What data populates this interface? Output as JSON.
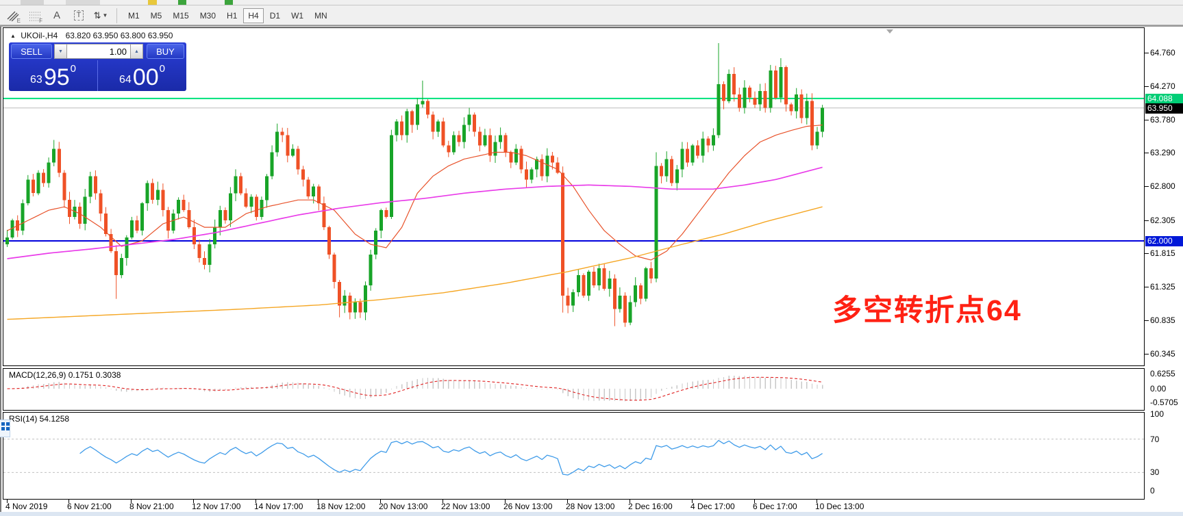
{
  "toolbar": {
    "tools": [
      {
        "name": "equidistant-channel-tool",
        "label": "E"
      },
      {
        "name": "fibonacci-grid-tool",
        "label": "F"
      },
      {
        "name": "text-tool",
        "label": "A"
      },
      {
        "name": "text-label-tool",
        "label": "T"
      },
      {
        "name": "arrow-objects-tool",
        "label": ""
      }
    ],
    "timeframes": [
      {
        "label": "M1",
        "active": false
      },
      {
        "label": "M5",
        "active": false
      },
      {
        "label": "M15",
        "active": false
      },
      {
        "label": "M30",
        "active": false
      },
      {
        "label": "H1",
        "active": false
      },
      {
        "label": "H4",
        "active": true
      },
      {
        "label": "D1",
        "active": false
      },
      {
        "label": "W1",
        "active": false
      },
      {
        "label": "MN",
        "active": false
      }
    ]
  },
  "window": {
    "collapse_icon": "▲",
    "title_symbol": "UKOil-,H4",
    "title_ohlc": "63.820 63.950 63.800 63.950"
  },
  "trade_panel": {
    "sell_label": "SELL",
    "buy_label": "BUY",
    "volume": "1.00",
    "spin_down_icon": "▼",
    "spin_up_icon": "▲",
    "sell_price": {
      "prefix": "63",
      "main": "95",
      "sup": "0"
    },
    "buy_price": {
      "prefix": "64",
      "main": "00",
      "sup": "0"
    }
  },
  "annotation": {
    "text": "多空转折点64",
    "color": "#FF2113"
  },
  "indicators": {
    "macd_label": "MACD(12,26,9) 0.1751 0.3038",
    "rsi_label": "RSI(14) 54.1258"
  },
  "chart_data": {
    "type": "candlestick",
    "symbol": "UKOil-",
    "timeframe": "H4",
    "ohlc_display": {
      "open": "63.820",
      "high": "63.950",
      "low": "63.800",
      "close": "63.950"
    },
    "ylim": [
      60.17,
      65.12
    ],
    "price_ticks": [
      "64.760",
      "64.270",
      "63.780",
      "63.290",
      "62.800",
      "62.305",
      "61.815",
      "61.325",
      "60.835",
      "60.345"
    ],
    "levels": [
      {
        "price": 64.088,
        "label": "64.088",
        "color": "#00E27B",
        "label_bg": "#00CE76",
        "width": 2
      },
      {
        "price": 63.95,
        "label": "63.950",
        "color": "#BBBBBB",
        "label_bg": "#000000",
        "width": 1
      },
      {
        "price": 62.0,
        "label": "62.000",
        "color": "#0000DD",
        "label_bg": "#0018D8",
        "width": 2
      }
    ],
    "candles": {
      "up_color": "#18A428",
      "down_color": "#EF5126",
      "first_open": 61.95,
      "closes": [
        62.05,
        62.3,
        62.15,
        62.55,
        62.9,
        62.7,
        63.0,
        62.85,
        63.15,
        63.35,
        63.0,
        62.6,
        62.35,
        62.5,
        62.25,
        62.65,
        62.95,
        62.7,
        62.4,
        62.1,
        61.85,
        61.5,
        61.75,
        62.05,
        62.3,
        62.15,
        62.55,
        62.85,
        62.6,
        62.75,
        62.45,
        62.15,
        62.4,
        62.6,
        62.45,
        62.2,
        61.95,
        61.75,
        61.65,
        61.95,
        62.2,
        62.45,
        62.3,
        62.7,
        62.95,
        62.7,
        62.5,
        62.65,
        62.35,
        62.6,
        62.95,
        63.3,
        63.6,
        63.55,
        63.25,
        63.35,
        63.05,
        62.9,
        62.65,
        62.8,
        62.55,
        62.2,
        61.8,
        61.4,
        61.05,
        61.2,
        60.95,
        61.1,
        60.95,
        61.35,
        61.8,
        62.15,
        62.45,
        62.35,
        63.55,
        63.75,
        63.55,
        63.9,
        63.7,
        64.0,
        64.05,
        63.85,
        63.6,
        63.75,
        63.4,
        63.3,
        63.55,
        63.45,
        63.7,
        63.85,
        63.6,
        63.4,
        63.55,
        63.25,
        63.45,
        63.55,
        63.3,
        63.15,
        63.35,
        63.05,
        62.9,
        63.05,
        63.2,
        62.95,
        63.25,
        63.15,
        63.0,
        61.2,
        61.05,
        61.25,
        61.5,
        61.2,
        61.55,
        61.35,
        61.6,
        61.3,
        61.45,
        61.0,
        61.2,
        60.8,
        61.1,
        61.35,
        61.15,
        61.6,
        61.45,
        63.1,
        62.95,
        63.2,
        62.85,
        63.05,
        63.35,
        63.15,
        63.4,
        63.25,
        63.5,
        63.4,
        63.55,
        64.3,
        64.05,
        64.45,
        64.15,
        63.95,
        64.25,
        64.1,
        64.0,
        64.2,
        63.95,
        64.5,
        64.1,
        64.55,
        64.0,
        63.9,
        64.15,
        63.8,
        64.05,
        63.4,
        63.6,
        63.95
      ],
      "wick_overrides": {
        "9": {
          "h": 63.48
        },
        "21": {
          "l": 61.15
        },
        "52": {
          "h": 63.72
        },
        "64": {
          "l": 60.88
        },
        "66": {
          "l": 60.85
        },
        "68": {
          "l": 60.87
        },
        "80": {
          "h": 64.35
        },
        "107": {
          "l": 60.95
        },
        "117": {
          "l": 60.75
        },
        "119": {
          "l": 60.74
        },
        "125": {
          "h": 63.3
        },
        "137": {
          "h": 64.9
        },
        "149": {
          "h": 64.68
        },
        "155": {
          "l": 63.33
        }
      }
    },
    "moving_averages": [
      {
        "name": "fast-ma",
        "color": "#E8522A",
        "width": 1.2,
        "points": [
          [
            0,
            62.15
          ],
          [
            4,
            62.3
          ],
          [
            8,
            62.45
          ],
          [
            11,
            62.5
          ],
          [
            14,
            62.4
          ],
          [
            18,
            62.2
          ],
          [
            22,
            61.92
          ],
          [
            26,
            62.0
          ],
          [
            30,
            62.25
          ],
          [
            34,
            62.35
          ],
          [
            38,
            62.2
          ],
          [
            42,
            62.2
          ],
          [
            46,
            62.4
          ],
          [
            50,
            62.5
          ],
          [
            53,
            62.55
          ],
          [
            56,
            62.6
          ],
          [
            59,
            62.6
          ],
          [
            63,
            62.45
          ],
          [
            67,
            62.1
          ],
          [
            70,
            61.95
          ],
          [
            73,
            61.9
          ],
          [
            76,
            62.2
          ],
          [
            79,
            62.7
          ],
          [
            82,
            62.95
          ],
          [
            85,
            63.1
          ],
          [
            88,
            63.2
          ],
          [
            91,
            63.25
          ],
          [
            94,
            63.3
          ],
          [
            97,
            63.3
          ],
          [
            100,
            63.25
          ],
          [
            103,
            63.15
          ],
          [
            106,
            63.05
          ],
          [
            109,
            62.8
          ],
          [
            112,
            62.45
          ],
          [
            115,
            62.15
          ],
          [
            118,
            61.95
          ],
          [
            121,
            61.78
          ],
          [
            124,
            61.72
          ],
          [
            127,
            61.85
          ],
          [
            130,
            62.1
          ],
          [
            133,
            62.4
          ],
          [
            136,
            62.7
          ],
          [
            139,
            63.0
          ],
          [
            142,
            63.25
          ],
          [
            145,
            63.45
          ],
          [
            148,
            63.55
          ],
          [
            151,
            63.62
          ],
          [
            154,
            63.68
          ],
          [
            157,
            63.7
          ]
        ]
      },
      {
        "name": "medium-ma",
        "color": "#E93CE9",
        "width": 1.7,
        "points": [
          [
            0,
            61.74
          ],
          [
            8,
            61.82
          ],
          [
            16,
            61.88
          ],
          [
            24,
            61.95
          ],
          [
            32,
            62.02
          ],
          [
            40,
            62.12
          ],
          [
            48,
            62.25
          ],
          [
            56,
            62.38
          ],
          [
            64,
            62.48
          ],
          [
            72,
            62.56
          ],
          [
            80,
            62.62
          ],
          [
            88,
            62.7
          ],
          [
            96,
            62.76
          ],
          [
            104,
            62.8
          ],
          [
            112,
            62.82
          ],
          [
            120,
            62.8
          ],
          [
            128,
            62.76
          ],
          [
            136,
            62.76
          ],
          [
            142,
            62.82
          ],
          [
            148,
            62.9
          ],
          [
            152,
            62.98
          ],
          [
            157,
            63.08
          ]
        ]
      },
      {
        "name": "slow-ma",
        "color": "#F5A623",
        "width": 1.4,
        "points": [
          [
            0,
            60.85
          ],
          [
            15,
            60.9
          ],
          [
            30,
            60.95
          ],
          [
            45,
            61.0
          ],
          [
            60,
            61.06
          ],
          [
            72,
            61.14
          ],
          [
            84,
            61.24
          ],
          [
            96,
            61.38
          ],
          [
            108,
            61.55
          ],
          [
            120,
            61.75
          ],
          [
            130,
            61.95
          ],
          [
            138,
            62.1
          ],
          [
            146,
            62.28
          ],
          [
            152,
            62.4
          ],
          [
            157,
            62.5
          ]
        ]
      }
    ],
    "macd": {
      "fast": 12,
      "slow": 26,
      "signal": 9,
      "value": "0.1751",
      "signal_value": "0.3038",
      "hist_color": "#C8C8C8",
      "signal_color": "#E02020",
      "ticks": [
        {
          "v": 0.6255,
          "label": "0.6255"
        },
        {
          "v": 0,
          "label": "0.00"
        },
        {
          "v": -0.5705,
          "label": "-0.5705"
        }
      ]
    },
    "rsi": {
      "period": 14,
      "value": "54.1258",
      "line_color": "#3E9BE9",
      "levels": [
        70,
        30
      ],
      "ticks": [
        {
          "v": 100,
          "label": "100"
        },
        {
          "v": 70,
          "label": "70"
        },
        {
          "v": 30,
          "label": "30"
        },
        {
          "v": 0,
          "label": "0"
        }
      ]
    },
    "time_axis": {
      "labels": [
        "4 Nov 2019",
        "6 Nov 21:00",
        "8 Nov 21:00",
        "12 Nov 17:00",
        "14 Nov 17:00",
        "18 Nov 12:00",
        "20 Nov 13:00",
        "22 Nov 13:00",
        "26 Nov 13:00",
        "28 Nov 13:00",
        "2 Dec 16:00",
        "4 Dec 17:00",
        "6 Dec 17:00",
        "10 Dec 13:00"
      ],
      "bars": [
        0,
        12,
        24,
        36,
        48,
        60,
        72,
        84,
        96,
        108,
        120,
        132,
        144,
        156
      ]
    }
  }
}
